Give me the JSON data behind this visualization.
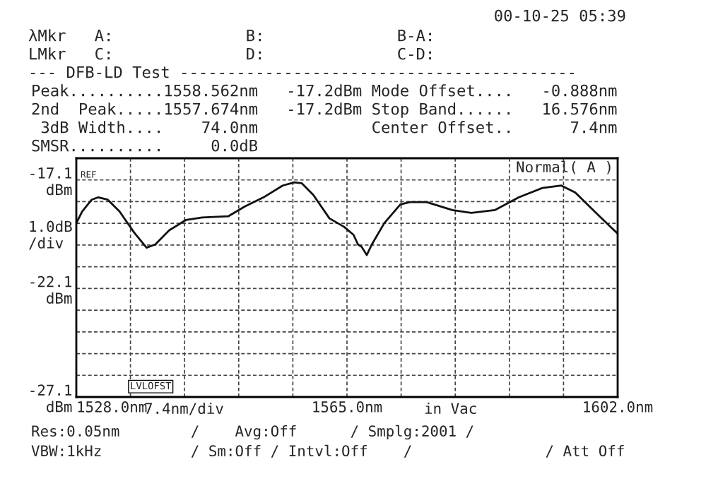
{
  "chart_data": {
    "type": "line",
    "series": [
      {
        "color": "#111111",
        "x": [
          1528.0,
          1528.8,
          1530.1,
          1531.0,
          1532.3,
          1533.9,
          1535.9,
          1537.6,
          1538.8,
          1540.7,
          1543.0,
          1545.2,
          1548.8,
          1551.0,
          1553.6,
          1556.2,
          1557.8,
          1558.8,
          1560.4,
          1562.6,
          1564.6,
          1565.9,
          1566.5,
          1567.0,
          1567.7,
          1568.4,
          1570.1,
          1572.3,
          1573.6,
          1575.9,
          1579.4,
          1582.0,
          1585.2,
          1588.5,
          1591.7,
          1594.3,
          1596.2,
          1599.5,
          1602.0
        ],
        "values": [
          -19.09,
          -18.55,
          -18.01,
          -17.9,
          -18.01,
          -18.55,
          -19.52,
          -20.22,
          -20.07,
          -19.42,
          -18.94,
          -18.83,
          -18.77,
          -18.33,
          -17.9,
          -17.36,
          -17.21,
          -17.25,
          -17.79,
          -18.87,
          -19.26,
          -19.63,
          -20.07,
          -20.18,
          -20.56,
          -20.07,
          -19.09,
          -18.23,
          -18.12,
          -18.12,
          -18.49,
          -18.62,
          -18.49,
          -17.9,
          -17.47,
          -17.36,
          -17.68,
          -18.77,
          -19.57
        ]
      }
    ],
    "xlim": [
      1528.0,
      1602.0
    ],
    "xticks": [
      {
        "value": 1528.0,
        "label": "1528.0nm"
      },
      {
        "value": 1535.4,
        "label": null
      },
      {
        "value": 1542.8,
        "label": null
      },
      {
        "value": 1550.2,
        "label": null
      },
      {
        "value": 1557.6,
        "label": null
      },
      {
        "value": 1565.0,
        "label": "1565.0nm"
      },
      {
        "value": 1572.4,
        "label": null
      },
      {
        "value": 1579.8,
        "label": null
      },
      {
        "value": 1587.2,
        "label": null
      },
      {
        "value": 1594.6,
        "label": null
      },
      {
        "value": 1602.0,
        "label": "1602.0nm"
      }
    ],
    "ylim": [
      -27.1,
      -16.1
    ],
    "yticks": [
      {
        "value": -17.1,
        "label": "-17.1\ndBm"
      },
      {
        "value": -18.1,
        "label": null
      },
      {
        "value": -19.1,
        "label": null
      },
      {
        "value": -20.1,
        "label": null
      },
      {
        "value": -21.1,
        "label": null
      },
      {
        "value": -22.1,
        "label": "-22.1\ndBm"
      },
      {
        "value": -23.1,
        "label": null
      },
      {
        "value": -24.1,
        "label": null
      },
      {
        "value": -25.1,
        "label": null
      },
      {
        "value": -26.1,
        "label": null
      },
      {
        "value": -27.1,
        "label": "-27.1\ndBm"
      }
    ],
    "xlabel": "7.4nm/div",
    "ylabel": "1.0dB\n/div",
    "grid": true,
    "line_style": "solid",
    "marker": "none",
    "annotations": [
      "00-10-25 05:39",
      "λMkr   A:              B:              B-A:",
      "LMkr   C:              D:              C-D:",
      "--- DFB-LD Test ------------------------------------------",
      "Peak..........1558.562nm   -17.2dBm Mode Offset....   -0.888nm",
      "2nd  Peak.....1557.674nm   -17.2dBm Stop Band......   16.576nm",
      " 3dB Width....    74.0nm            Center Offset..      7.4nm",
      "SMSR..........     0.0dB",
      "Normal( A )",
      "REF",
      "LVLOFST",
      "in Vac",
      "Res:0.05nm        /    Avg:Off      / Smplg:2001 /",
      "VBW:1kHz          / Sm:Off / Intvl:Off    /               / Att Off"
    ]
  }
}
